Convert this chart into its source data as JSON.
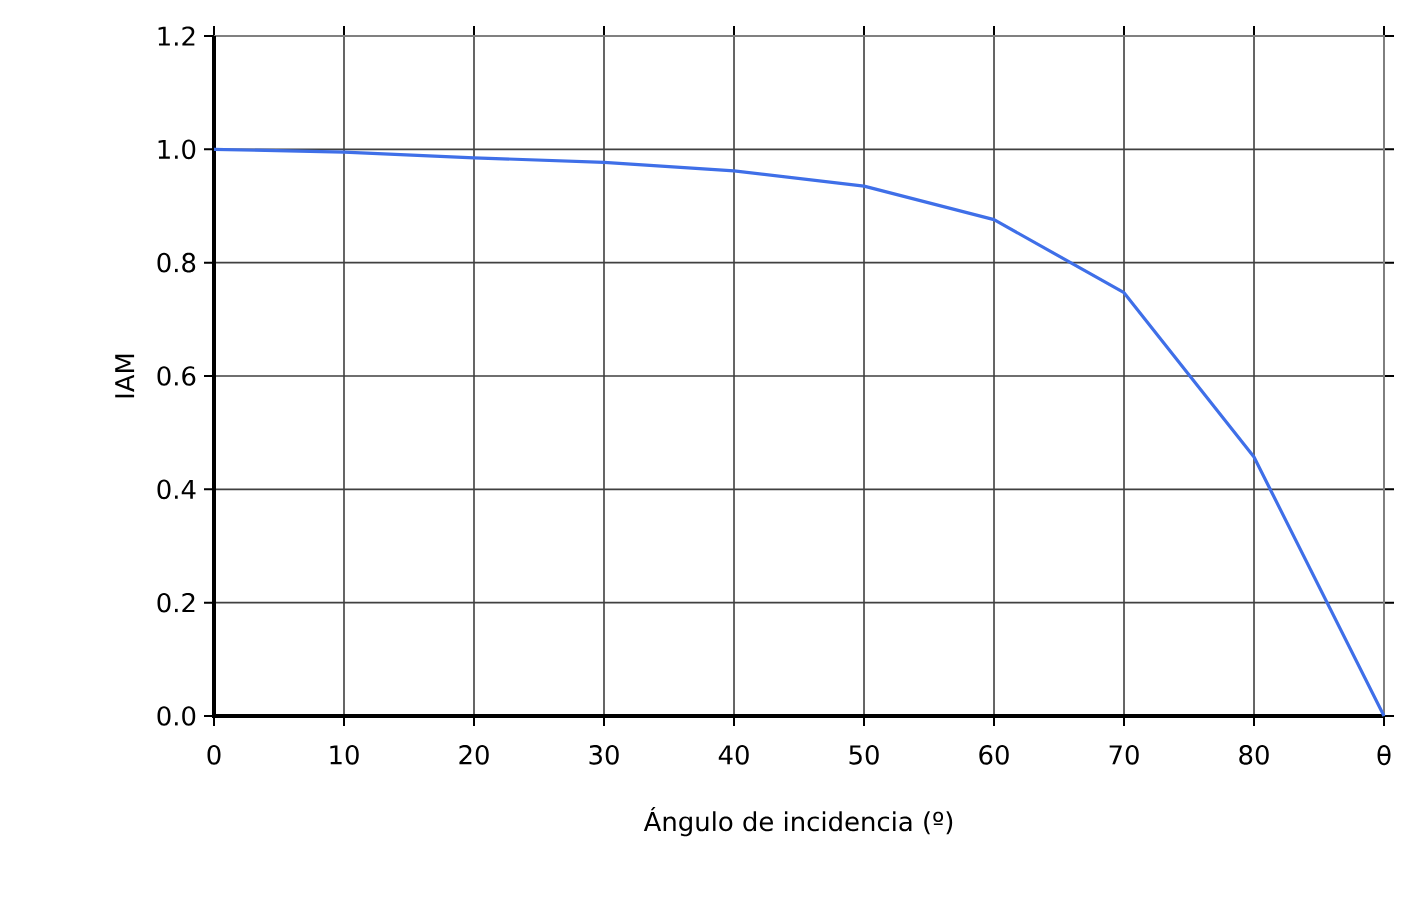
{
  "chart_data": {
    "type": "line",
    "xlabel": "Ángulo de incidencia (º)",
    "ylabel": "IAM",
    "x": [
      0,
      10,
      20,
      30,
      40,
      50,
      60,
      70,
      80,
      90
    ],
    "series": [
      {
        "color": "#3f6fe8",
        "values": [
          1.0,
          0.995,
          0.985,
          0.977,
          0.962,
          0.935,
          0.876,
          0.747,
          0.457,
          0.0
        ]
      }
    ],
    "xlim": [
      0,
      90
    ],
    "ylim": [
      0,
      1.2
    ],
    "xticks": [
      0,
      10,
      20,
      30,
      40,
      50,
      60,
      70,
      80,
      {
        "value": 90,
        "label": "θ"
      }
    ],
    "yticks": [
      {
        "value": 0,
        "label": "0.0"
      },
      {
        "value": 0.2,
        "label": "0.2"
      },
      {
        "value": 0.4,
        "label": "0.4"
      },
      {
        "value": 0.6,
        "label": "0.6"
      },
      {
        "value": 0.8,
        "label": "0.8"
      },
      {
        "value": 1.0,
        "label": "1.0"
      },
      {
        "value": 1.2,
        "label": "1.2"
      }
    ],
    "grid": true,
    "marker": "none",
    "line_style": "solid"
  }
}
